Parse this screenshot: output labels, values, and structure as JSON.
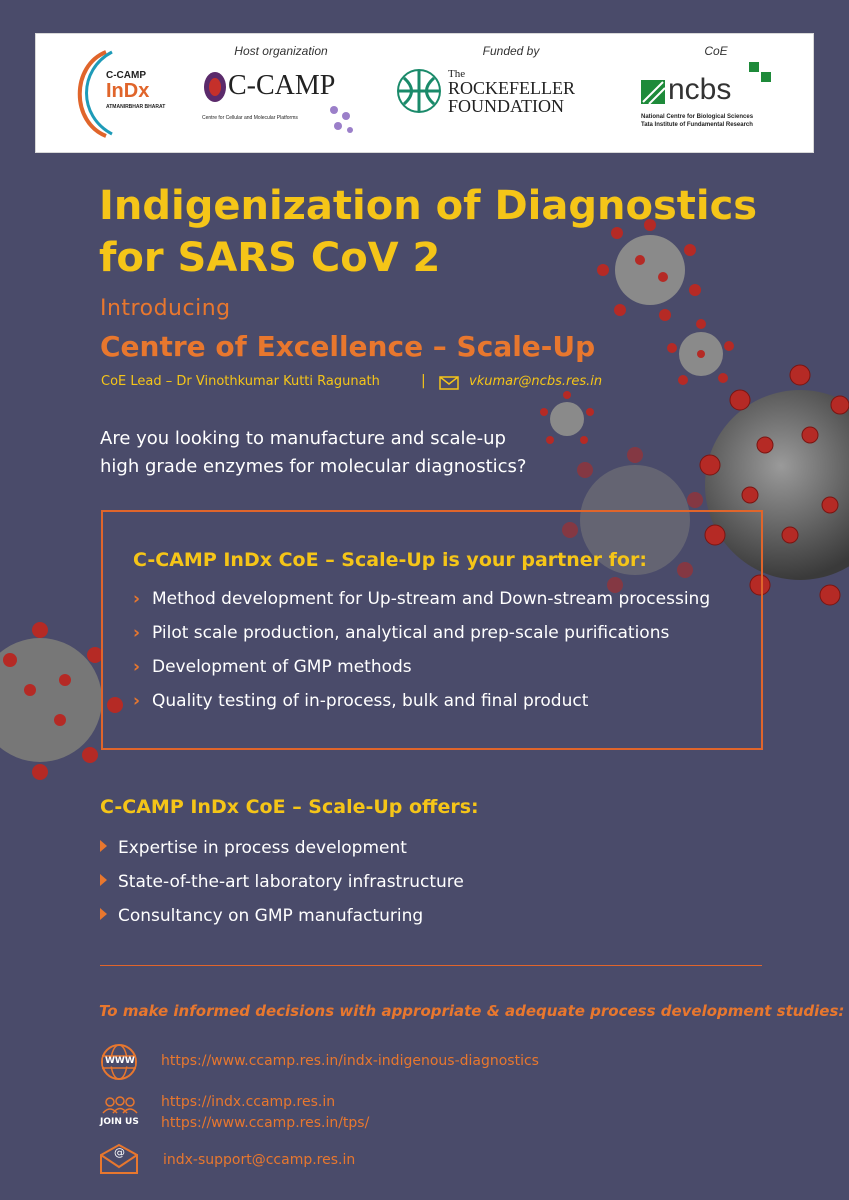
{
  "header": {
    "captions": {
      "host": "Host organization",
      "funded": "Funded by",
      "coe": "CoE"
    },
    "indx_logo": {
      "top": "C-CAMP",
      "main": "InDx",
      "sub": "ATMANIRBHAR BHARAT"
    },
    "ccamp_logo": {
      "main": "C-CAMP",
      "sub": "Centre for Cellular and Molecular Platforms"
    },
    "rockefeller_logo": {
      "the": "The",
      "line1": "ROCKEFELLER",
      "line2": "FOUNDATION"
    },
    "ncbs_logo": {
      "main": "ncbs",
      "line1": "National Centre for Biological Sciences",
      "line2": "Tata Institute of Fundamental Research"
    }
  },
  "title": {
    "line1": "Indigenization of Diagnostics",
    "line2": "for SARS CoV 2"
  },
  "introducing": "Introducing",
  "coe_title": "Centre of Excellence – Scale-Up",
  "lead": {
    "text": "CoE Lead – Dr Vinothkumar Kutti Ragunath",
    "separator": "|",
    "email": "vkumar@ncbs.res.in"
  },
  "question": {
    "line1": "Are you looking to manufacture and scale-up",
    "line2": "high grade enzymes for molecular diagnostics?"
  },
  "partner": {
    "title": "C-CAMP InDx CoE – Scale-Up is your partner for:",
    "items": [
      "Method development for Up-stream and Down-stream processing",
      "Pilot scale production, analytical and prep-scale purifications",
      "Development of GMP methods",
      "Quality testing of in-process, bulk and final product"
    ]
  },
  "offers": {
    "title": "C-CAMP InDx CoE – Scale-Up offers:",
    "items": [
      "Expertise in process development",
      "State-of-the-art laboratory infrastructure",
      "Consultancy on GMP manufacturing"
    ]
  },
  "decisions": "To make informed decisions with appropriate & adequate process development studies:",
  "contacts": {
    "www_label": "WWW",
    "www_link": "https://www.ccamp.res.in/indx-indigenous-diagnostics",
    "join_label": "JOIN US",
    "join_link1": "https://indx.ccamp.res.in",
    "join_link2": "https://www.ccamp.res.in/tps/",
    "mail_symbol": "@",
    "email": "indx-support@ccamp.res.in"
  },
  "colors": {
    "background": "#4a4b6a",
    "yellow": "#f5c518",
    "orange": "#e8772e",
    "virus_red": "#c0392b"
  }
}
